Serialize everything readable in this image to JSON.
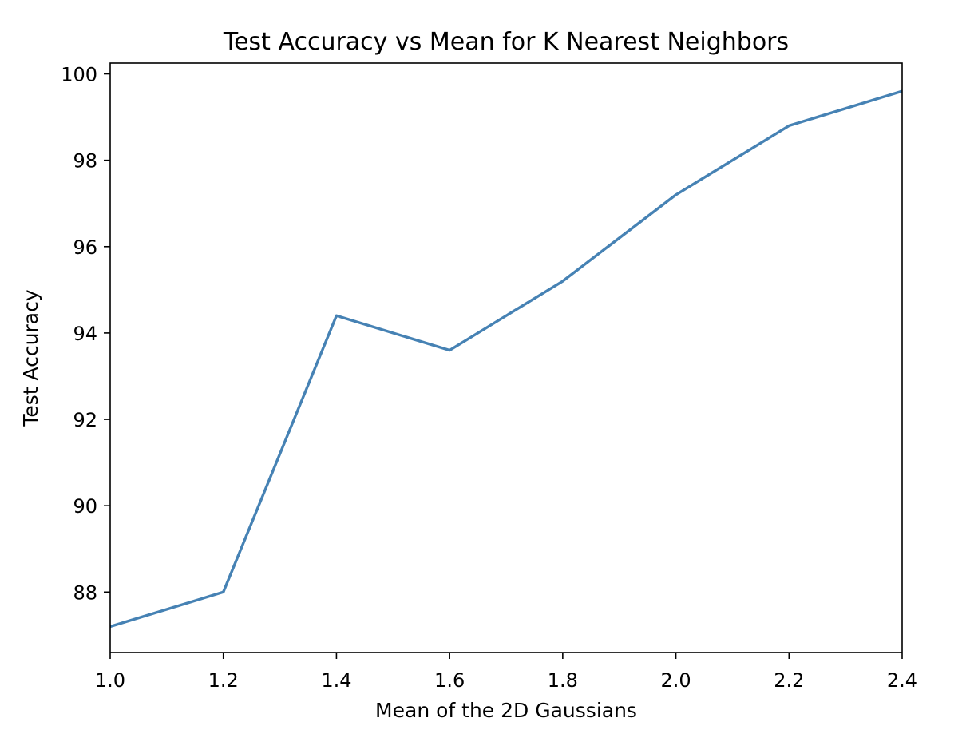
{
  "chart_data": {
    "type": "line",
    "title": "Test Accuracy vs Mean for K Nearest Neighbors",
    "xlabel": "Mean of the 2D Gaussians",
    "ylabel": "Test Accuracy",
    "xlim": [
      1.0,
      2.4
    ],
    "ylim": [
      86.6,
      100.25
    ],
    "xticks": [
      1.0,
      1.2,
      1.4,
      1.6,
      1.8,
      2.0,
      2.2,
      2.4
    ],
    "xtick_labels": [
      "1.0",
      "1.2",
      "1.4",
      "1.6",
      "1.8",
      "2.0",
      "2.2",
      "2.4"
    ],
    "yticks": [
      88,
      90,
      92,
      94,
      96,
      98,
      100
    ],
    "ytick_labels": [
      "88",
      "90",
      "92",
      "94",
      "96",
      "98",
      "100"
    ],
    "grid": false,
    "series": [
      {
        "color": "#4682b4",
        "x": [
          1.0,
          1.2,
          1.4,
          1.6,
          1.8,
          2.0,
          2.2,
          2.4
        ],
        "y": [
          87.2,
          88.0,
          94.4,
          93.6,
          95.2,
          97.2,
          98.8,
          99.6
        ]
      }
    ]
  }
}
